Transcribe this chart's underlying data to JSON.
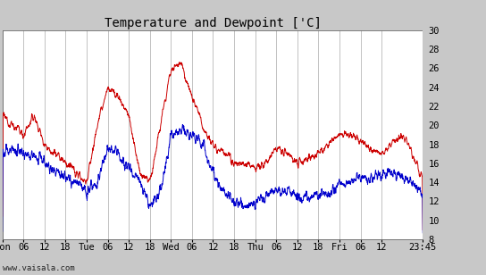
{
  "title": "Temperature and Dewpoint ['C]",
  "ylabel_right_ticks": [
    8,
    10,
    12,
    14,
    16,
    18,
    20,
    22,
    24,
    26,
    28,
    30
  ],
  "ylim": [
    8,
    30
  ],
  "background_color": "#c8c8c8",
  "plot_bg_color": "#ffffff",
  "grid_color": "#aaaaaa",
  "temp_color": "#cc0000",
  "dewpoint_color": "#0000cc",
  "watermark": "www.vaisala.com",
  "x_tick_labels": [
    "Mon",
    "06",
    "12",
    "18",
    "Tue",
    "06",
    "12",
    "18",
    "Wed",
    "06",
    "12",
    "18",
    "Thu",
    "06",
    "12",
    "18",
    "Fri",
    "06",
    "12",
    "23:45"
  ],
  "x_tick_positions": [
    0,
    6,
    12,
    18,
    24,
    30,
    36,
    42,
    48,
    54,
    60,
    66,
    72,
    78,
    84,
    90,
    96,
    102,
    108,
    119.75
  ],
  "total_hours": 119.75,
  "title_fontsize": 10,
  "tick_fontsize": 7.5,
  "watermark_fontsize": 6.5
}
